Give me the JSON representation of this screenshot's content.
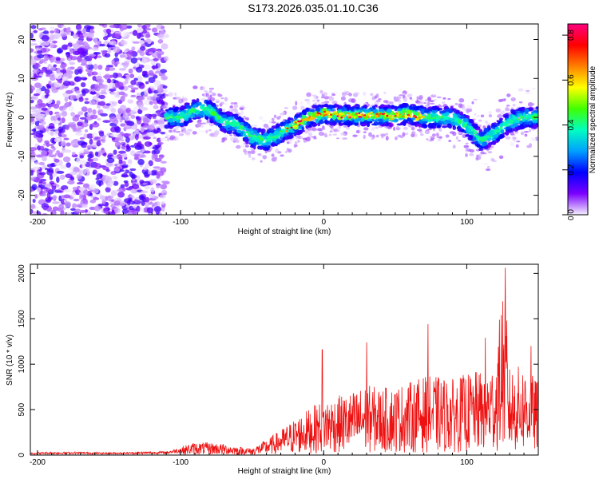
{
  "title": "S173.2026.035.01.10.C36",
  "chart_data": [
    {
      "type": "heatmap",
      "xlabel": "Height of straight line (km)",
      "ylabel": "Frequency (Hz)",
      "xlim": [
        -205,
        150
      ],
      "ylim": [
        -25,
        24
      ],
      "xticks": [
        -200,
        -100,
        0,
        100
      ],
      "yticks": [
        20,
        10,
        0,
        -10,
        -20
      ],
      "grid": false,
      "colorbar": {
        "label": "Normalized spectral amplitude",
        "range": [
          0.0,
          0.85
        ],
        "ticks": [
          "0.0",
          "0.2",
          "0.4",
          "0.6",
          "0.8"
        ],
        "colormap": [
          "#f5f0ff",
          "#7a00ff",
          "#0000ff",
          "#00a0ff",
          "#00ffc0",
          "#40ff00",
          "#ffff00",
          "#ff8000",
          "#ff0000",
          "#ff0080"
        ]
      },
      "ridge": {
        "x": [
          -110,
          -100,
          -90,
          -80,
          -70,
          -60,
          -50,
          -40,
          -30,
          -20,
          -10,
          0,
          10,
          20,
          30,
          40,
          50,
          60,
          70,
          80,
          90,
          100,
          110,
          120,
          130,
          140,
          150
        ],
        "y": [
          0,
          0,
          2,
          2,
          -1,
          -2,
          -5,
          -6,
          -4,
          -2,
          0,
          1,
          0.5,
          0.5,
          0.5,
          0.5,
          0.5,
          1,
          0,
          0,
          0,
          -2,
          -6,
          -4,
          -1,
          0,
          0
        ]
      }
    },
    {
      "type": "line",
      "xlabel": "Height of straight line (km)",
      "ylabel": "SNR (10 * v/v)",
      "xlim": [
        -205,
        150
      ],
      "ylim": [
        0,
        2100
      ],
      "xticks": [
        -200,
        -100,
        0,
        100
      ],
      "yticks": [
        0,
        500,
        1000,
        1500,
        2000
      ],
      "grid": false,
      "color": "#ee1111",
      "series": [
        {
          "x": [
            -205,
            -190,
            -170,
            -150,
            -130,
            -110,
            -100,
            -90,
            -80,
            -70,
            -60,
            -50,
            -40,
            -30,
            -20,
            -10,
            0,
            10,
            20,
            30,
            40,
            50,
            60,
            70,
            80,
            90,
            100,
            110,
            120,
            125,
            130,
            140,
            150
          ],
          "y": [
            20,
            25,
            25,
            20,
            25,
            30,
            60,
            90,
            90,
            80,
            60,
            50,
            110,
            180,
            260,
            330,
            400,
            420,
            450,
            500,
            480,
            490,
            520,
            560,
            560,
            540,
            580,
            600,
            660,
            1200,
            620,
            640,
            520
          ]
        }
      ],
      "peaks": {
        "x": [
          -1,
          30,
          73,
          113,
          127,
          128,
          145
        ],
        "y": [
          1160,
          1240,
          1440,
          1290,
          2060,
          1480,
          1200
        ]
      }
    }
  ]
}
